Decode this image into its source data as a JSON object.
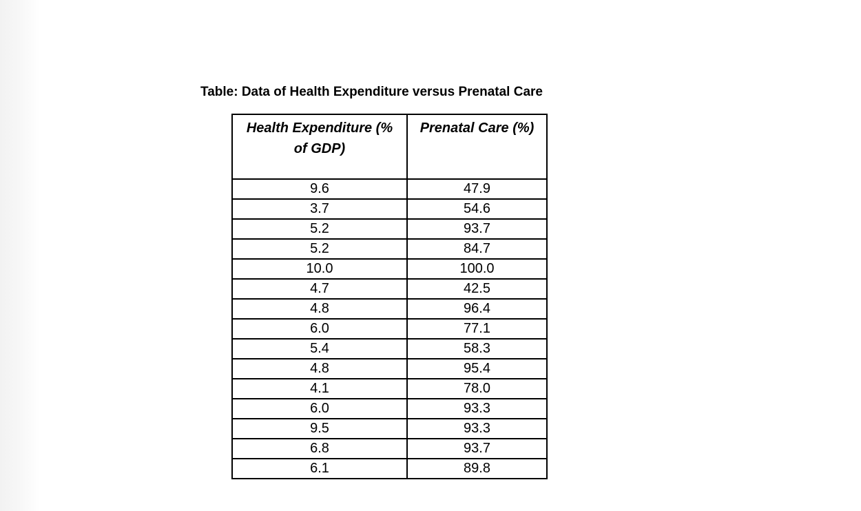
{
  "document": {
    "title": "Table: Data of Health Expenditure versus Prenatal Care"
  },
  "chart_data": {
    "type": "table",
    "title": "Table: Data of Health Expenditure versus Prenatal Care",
    "columns": [
      "Health Expenditure (% of GDP)",
      "Prenatal Care (%)"
    ],
    "rows": [
      [
        "9.6",
        "47.9"
      ],
      [
        "3.7",
        "54.6"
      ],
      [
        "5.2",
        "93.7"
      ],
      [
        "5.2",
        "84.7"
      ],
      [
        "10.0",
        "100.0"
      ],
      [
        "4.7",
        "42.5"
      ],
      [
        "4.8",
        "96.4"
      ],
      [
        "6.0",
        "77.1"
      ],
      [
        "5.4",
        "58.3"
      ],
      [
        "4.8",
        "95.4"
      ],
      [
        "4.1",
        "78.0"
      ],
      [
        "6.0",
        "93.3"
      ],
      [
        "9.5",
        "93.3"
      ],
      [
        "6.8",
        "93.7"
      ],
      [
        "6.1",
        "89.8"
      ]
    ]
  }
}
